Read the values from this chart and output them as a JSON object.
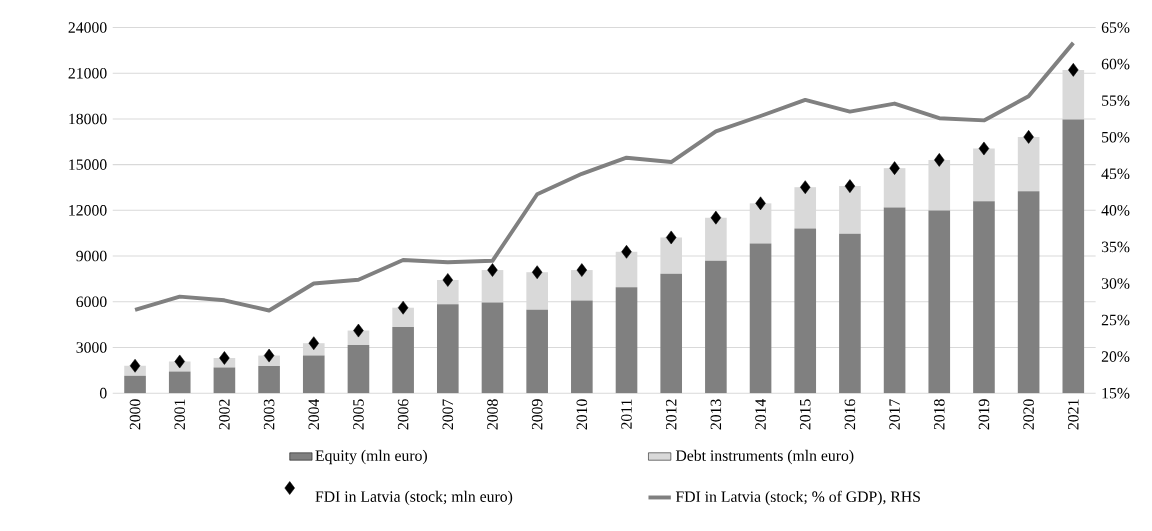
{
  "chart_data": {
    "type": "bar",
    "stacked": true,
    "categories": [
      "2000",
      "2001",
      "2002",
      "2003",
      "2004",
      "2005",
      "2006",
      "2007",
      "2008",
      "2009",
      "2010",
      "2011",
      "2012",
      "2013",
      "2014",
      "2015",
      "2016",
      "2017",
      "2018",
      "2019",
      "2020",
      "2021"
    ],
    "series": [
      {
        "name": "Equity (mln euro)",
        "color": "#808080",
        "values": [
          1150,
          1430,
          1680,
          1780,
          2470,
          3160,
          4340,
          5840,
          5950,
          5470,
          6090,
          6950,
          7840,
          8690,
          9820,
          10810,
          10460,
          12180,
          11990,
          12600,
          13260,
          17970
        ]
      },
      {
        "name": "Debt instruments (mln euro)",
        "color": "#d9d9d9",
        "values": [
          650,
          650,
          630,
          690,
          810,
          950,
          1270,
          1590,
          2130,
          2470,
          1990,
          2330,
          2380,
          2830,
          2640,
          2710,
          3130,
          2590,
          3320,
          3460,
          3560,
          3250
        ]
      },
      {
        "name": "FDI in Latvia (stock; mln euro)",
        "type": "scatter",
        "marker": "diamond",
        "color": "#000000",
        "values": [
          1800,
          2080,
          2310,
          2470,
          3280,
          4110,
          5610,
          7430,
          8080,
          7940,
          8080,
          9280,
          10220,
          11520,
          12460,
          13520,
          13590,
          14770,
          15310,
          16060,
          16820,
          21220
        ]
      },
      {
        "name": "FDI in Latvia (stock; % of GDP), RHS",
        "type": "line",
        "axis": "y2",
        "color": "#808080",
        "values": [
          26.4,
          28.2,
          27.7,
          26.3,
          30.0,
          30.5,
          33.2,
          32.9,
          33.1,
          42.2,
          45.0,
          47.2,
          46.6,
          50.8,
          52.9,
          55.1,
          53.5,
          54.6,
          52.6,
          52.3,
          55.6,
          62.9
        ]
      }
    ],
    "ylim": [
      0,
      24000
    ],
    "yticks": [
      0,
      3000,
      6000,
      9000,
      12000,
      15000,
      18000,
      21000,
      24000
    ],
    "y2lim": [
      15,
      65
    ],
    "y2ticks": [
      {
        "value": 15,
        "label": "15%"
      },
      {
        "value": 20,
        "label": "20%"
      },
      {
        "value": 25,
        "label": "25%"
      },
      {
        "value": 30,
        "label": "30%"
      },
      {
        "value": 35,
        "label": "35%"
      },
      {
        "value": 40,
        "label": "40%"
      },
      {
        "value": 45,
        "label": "45%"
      },
      {
        "value": 50,
        "label": "50%"
      },
      {
        "value": 55,
        "label": "55%"
      },
      {
        "value": 60,
        "label": "60%"
      },
      {
        "value": 65,
        "label": "65%"
      }
    ],
    "grid": "y",
    "legend": "bottom"
  }
}
